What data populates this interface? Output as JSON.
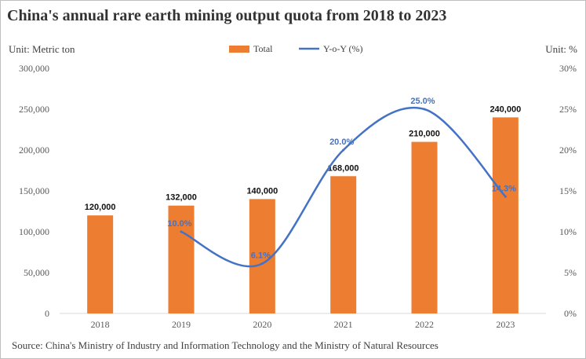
{
  "chart_data": {
    "type": "bar",
    "title": "China's annual rare earth mining output quota from 2018 to 2023",
    "left_unit": "Unit: Metric ton",
    "right_unit": "Unit: %",
    "source": "Source: China's Ministry of Industry and Information Technology and the Ministry of Natural Resources",
    "categories": [
      "2018",
      "2019",
      "2020",
      "2021",
      "2022",
      "2023"
    ],
    "series": [
      {
        "name": "Total",
        "type": "bar",
        "axis": "left",
        "values": [
          120000,
          132000,
          140000,
          168000,
          210000,
          240000
        ],
        "labels": [
          "120,000",
          "132,000",
          "140,000",
          "168,000",
          "210,000",
          "240,000"
        ],
        "color": "#ED7D31"
      },
      {
        "name": "Y-o-Y (%)",
        "type": "line",
        "axis": "right",
        "values": [
          null,
          10.0,
          6.1,
          20.0,
          25.0,
          14.3
        ],
        "labels": [
          "",
          "10.0%",
          "6.1%",
          "20.0%",
          "25.0%",
          "14.3%"
        ],
        "color": "#4472C4"
      }
    ],
    "y_left": {
      "min": 0,
      "max": 300000,
      "ticks": [
        "0",
        "50,000",
        "100,000",
        "150,000",
        "200,000",
        "250,000",
        "300,000"
      ]
    },
    "y_right": {
      "min": 0,
      "max": 30,
      "ticks": [
        "0%",
        "5%",
        "10%",
        "15%",
        "20%",
        "25%",
        "30%"
      ]
    },
    "grid": false,
    "legend": "top-center"
  }
}
